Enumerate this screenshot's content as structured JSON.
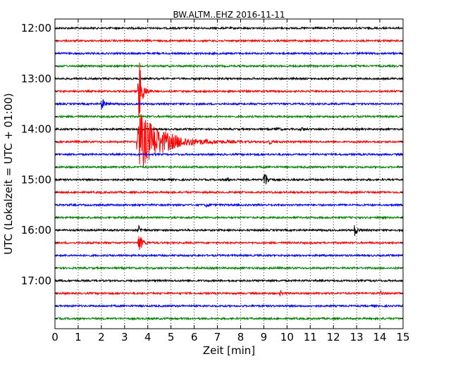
{
  "chart_data": {
    "type": "line",
    "title": "BW.ALTM..EHZ 2016-11-11",
    "xlabel": "Zeit  [min]",
    "ylabel": "UTC (Lokalzeit = UTC + 01:00)",
    "xlim": [
      0,
      15
    ],
    "x_ticks": [
      0,
      1,
      2,
      3,
      4,
      5,
      6,
      7,
      8,
      9,
      10,
      11,
      12,
      13,
      14,
      15
    ],
    "x_tick_labels": [
      "0",
      "1",
      "2",
      "3",
      "4",
      "5",
      "6",
      "7",
      "8",
      "9",
      "10",
      "11",
      "12",
      "13",
      "14",
      "15"
    ],
    "y_tick_labels": [
      "12:00",
      "13:00",
      "14:00",
      "15:00",
      "16:00",
      "17:00"
    ],
    "grid": "vertical dotted",
    "color_cycle": [
      "#000000",
      "#ff0000",
      "#0000ff",
      "#008000"
    ],
    "series": [
      {
        "offset": "12:00",
        "events": []
      },
      {
        "offset": "12:15",
        "events": []
      },
      {
        "offset": "12:30",
        "events": []
      },
      {
        "offset": "12:45",
        "events": []
      },
      {
        "offset": "13:00",
        "events": []
      },
      {
        "offset": "13:15",
        "events": [
          {
            "t": 3.6,
            "amp": 60
          }
        ]
      },
      {
        "offset": "13:30",
        "events": [
          {
            "t": 2.0,
            "amp": 9
          }
        ]
      },
      {
        "offset": "13:45",
        "events": []
      },
      {
        "offset": "14:00",
        "events": [
          {
            "t": 9.5,
            "amp": 3
          },
          {
            "t": 10.6,
            "amp": 3
          }
        ]
      },
      {
        "offset": "14:15",
        "events": [
          {
            "t": 3.55,
            "amp": 45,
            "decay": 1.0
          },
          {
            "t": 9.2,
            "amp": 4
          }
        ]
      },
      {
        "offset": "14:30",
        "events": []
      },
      {
        "offset": "14:45",
        "events": []
      },
      {
        "offset": "15:00",
        "events": [
          {
            "t": 7.4,
            "amp": 3
          },
          {
            "t": 9.0,
            "amp": 16
          }
        ]
      },
      {
        "offset": "15:15",
        "events": []
      },
      {
        "offset": "15:30",
        "events": [
          {
            "t": 6.5,
            "amp": 3
          }
        ]
      },
      {
        "offset": "15:45",
        "events": []
      },
      {
        "offset": "16:00",
        "events": [
          {
            "t": 3.6,
            "amp": 6
          },
          {
            "t": 12.9,
            "amp": 9
          }
        ]
      },
      {
        "offset": "16:15",
        "events": [
          {
            "t": 3.6,
            "amp": 18
          }
        ]
      },
      {
        "offset": "16:30",
        "events": []
      },
      {
        "offset": "16:45",
        "events": []
      },
      {
        "offset": "17:00",
        "events": []
      },
      {
        "offset": "17:15",
        "events": [
          {
            "t": 9.7,
            "amp": 3
          },
          {
            "t": 14.0,
            "amp": 3
          }
        ]
      },
      {
        "offset": "17:30",
        "events": []
      },
      {
        "offset": "17:45",
        "events": []
      }
    ]
  }
}
